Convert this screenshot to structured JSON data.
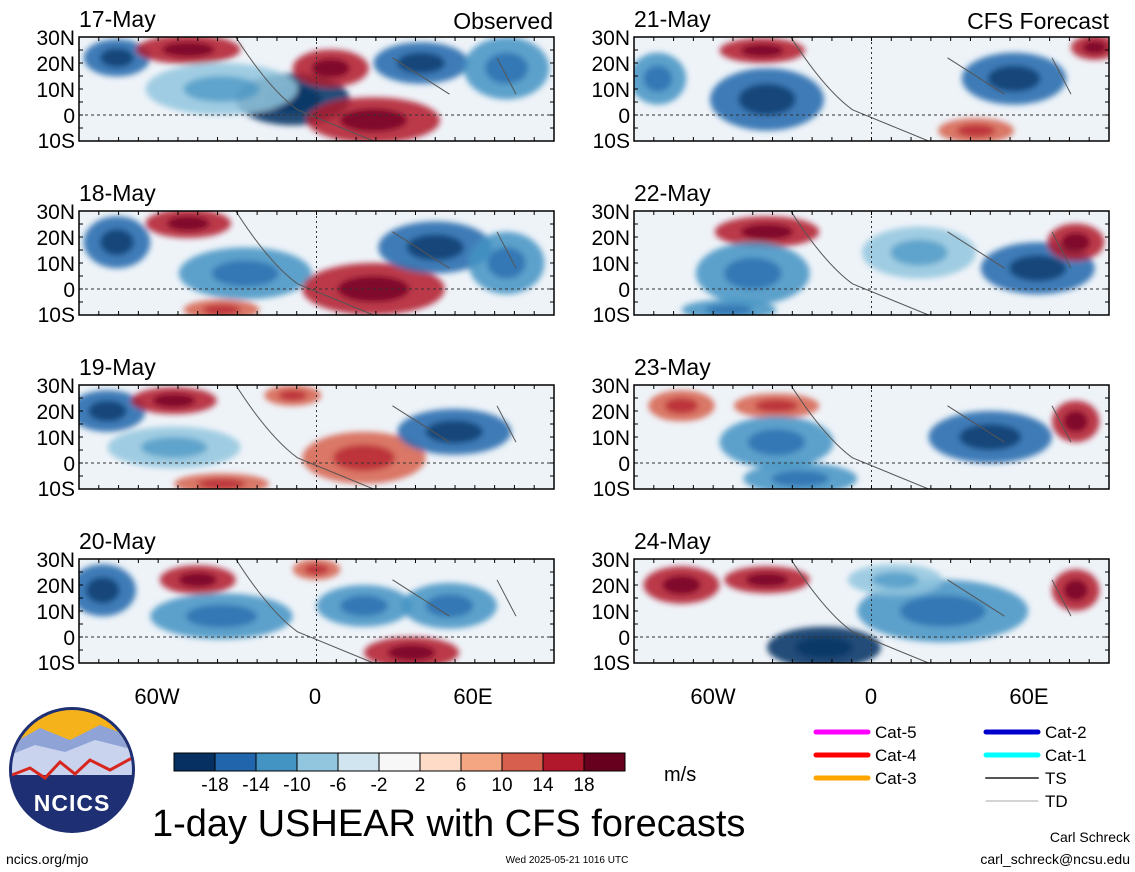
{
  "column_labels": {
    "left": "Observed",
    "right": "CFS Forecast"
  },
  "panels": [
    {
      "date": "17-May",
      "column": "left"
    },
    {
      "date": "18-May",
      "column": "left"
    },
    {
      "date": "19-May",
      "column": "left"
    },
    {
      "date": "20-May",
      "column": "left"
    },
    {
      "date": "21-May",
      "column": "right"
    },
    {
      "date": "22-May",
      "column": "right"
    },
    {
      "date": "23-May",
      "column": "right"
    },
    {
      "date": "24-May",
      "column": "right"
    }
  ],
  "lat_labels": [
    "30N",
    "20N",
    "10N",
    "0",
    "10S"
  ],
  "lon_labels": [
    "60W",
    "0",
    "60E"
  ],
  "colorbar": {
    "tick_labels": [
      "-18",
      "-14",
      "-10",
      "-6",
      "-2",
      "2",
      "6",
      "10",
      "14",
      "18"
    ],
    "colors": [
      "#053061",
      "#2166ac",
      "#4393c3",
      "#92c5de",
      "#d1e5f0",
      "#f7f7f7",
      "#fddbc7",
      "#f4a582",
      "#d6604d",
      "#b2182b",
      "#67001f"
    ],
    "units": "m/s"
  },
  "legend": [
    {
      "label": "Cat-5",
      "color": "#ff00ff"
    },
    {
      "label": "Cat-4",
      "color": "#ff0000"
    },
    {
      "label": "Cat-3",
      "color": "#ffa500"
    },
    {
      "label": "Cat-2",
      "color": "#0000cd"
    },
    {
      "label": "Cat-1",
      "color": "#00ffff"
    },
    {
      "label": "TS",
      "color": "#555555"
    },
    {
      "label": "TD",
      "color": "#aaaaaa"
    }
  ],
  "logo": {
    "text": "NCICS"
  },
  "title": "1-day USHEAR with CFS forecasts",
  "footer": {
    "left": "ncics.org/mjo",
    "center": "Wed 2025-05-21 1016 UTC",
    "author": "Carl Schreck",
    "email": "carl_schreck@ncsu.edu"
  }
}
